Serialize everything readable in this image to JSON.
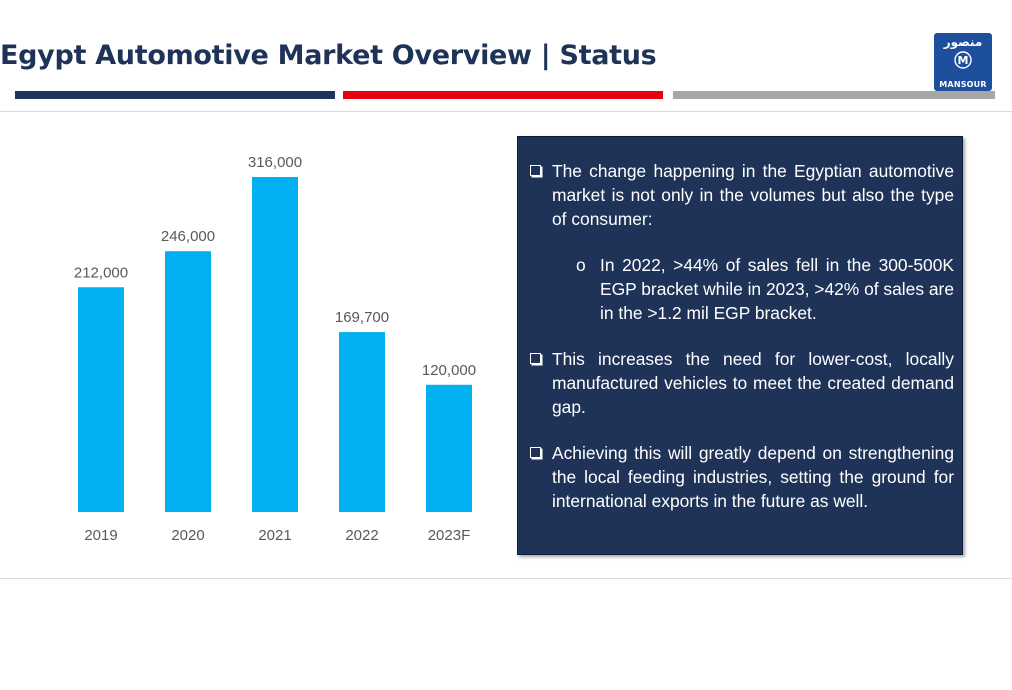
{
  "header": {
    "title": "Egypt Automotive Market Overview | Status",
    "logo": {
      "arabic_text": "منصور",
      "mark": "M",
      "english_text": "MANSOUR"
    }
  },
  "colors": {
    "navy": "#1f3358",
    "red": "#e60012",
    "gray": "#a6a6a6",
    "bar": "#00b0f0",
    "logo_blue": "#1e4f9c"
  },
  "chart_data": {
    "type": "bar",
    "categories": [
      "2019",
      "2020",
      "2021",
      "2022",
      "2023F"
    ],
    "values": [
      212000,
      246000,
      316000,
      169700,
      120000
    ],
    "data_labels": [
      "212,000",
      "246,000",
      "316,000",
      "169,700",
      "120,000"
    ],
    "title": "",
    "xlabel": "",
    "ylabel": "",
    "ylim": [
      0,
      316000
    ],
    "grid": false,
    "legend": "none"
  },
  "panel": {
    "bullet1": "The change happening in the Egyptian automotive market is not only in the volumes but also the type of consumer:",
    "sub_bullet_marker": "o",
    "sub_bullet": "In 2022, >44% of sales fell in the 300-500K EGP bracket while in 2023, >42% of sales are in the >1.2 mil EGP bracket.",
    "bullet2": "This increases the need for  lower-cost, locally manufactured vehicles to meet the created demand gap.",
    "bullet3": "Achieving this will greatly depend on strengthening the local feeding industries, setting the ground for international exports in the future as well."
  }
}
